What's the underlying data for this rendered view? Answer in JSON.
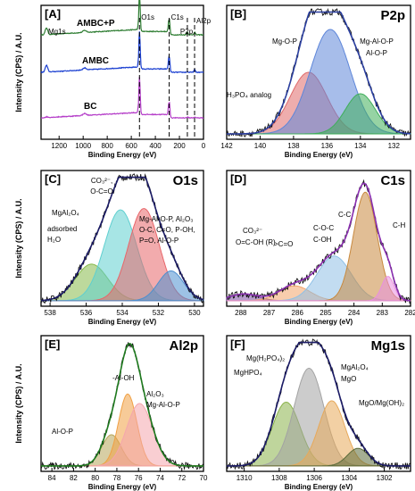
{
  "chart_data": [
    {
      "panel": "[A]",
      "type": "line",
      "title": "",
      "xlabel": "Binding Energy (eV)",
      "ylabel": "Intensity (CPS) / A.U.",
      "xlim": [
        1350,
        0
      ],
      "xticks": [
        1200,
        1000,
        800,
        600,
        400,
        200,
        0
      ],
      "series": [
        {
          "name": "AMBC+P",
          "color": "#2e7d32",
          "baseline": 0.78
        },
        {
          "name": "AMBC",
          "color": "#1a3fd1",
          "baseline": 0.5
        },
        {
          "name": "BC",
          "color": "#b43cc8",
          "baseline": 0.16
        }
      ],
      "peak_labels": [
        "Mg1s",
        "O1s",
        "C1s",
        "Al2p",
        "P2p"
      ],
      "peak_positions": [
        1305,
        532,
        285,
        74,
        134
      ]
    },
    {
      "panel": "[B]",
      "type": "area",
      "title": "P2p",
      "xlabel": "Binding Energy (eV)",
      "ylabel": "",
      "xlim": [
        142,
        131
      ],
      "xticks": [
        142,
        140,
        138,
        136,
        134,
        132
      ],
      "series": [
        {
          "name": "H₃PO₄ analog",
          "center": 137.1,
          "height": 0.46,
          "width": 1.1,
          "color": "#e06a6a"
        },
        {
          "name": "Mg-O-P",
          "center": 135.8,
          "height": 0.78,
          "width": 1.2,
          "color": "#5e86d9"
        },
        {
          "name": "Mg-Al-O-P / Al-O-P",
          "center": 134.0,
          "height": 0.3,
          "width": 0.9,
          "color": "#3fae5a"
        }
      ],
      "annotations": [
        "H₃PO₄ analog",
        "Mg-O-P",
        "Mg-Al-O-P",
        "Al-O-P"
      ]
    },
    {
      "panel": "[C]",
      "type": "area",
      "title": "O1s",
      "xlabel": "Binding Energy (eV)",
      "ylabel": "Intensity (CPS) / A.U.",
      "xlim": [
        538.5,
        529.5
      ],
      "xticks": [
        538,
        536,
        534,
        532,
        530
      ],
      "series": [
        {
          "name": "adsorbed H₂O",
          "center": 535.7,
          "height": 0.27,
          "width": 0.9,
          "color": "#86b94a"
        },
        {
          "name": "MgAl₂O₄",
          "center": 534.1,
          "height": 0.67,
          "width": 0.9,
          "color": "#5fcfd0"
        },
        {
          "name": "CO₃²⁻, O-C=O",
          "center": 532.8,
          "height": 0.68,
          "width": 0.85,
          "color": "#e8666a"
        },
        {
          "name": "Mg-Al-O-P, Al₂O₃, O-C, C=O, P-OH, P=O, Al-O-P",
          "center": 531.3,
          "height": 0.22,
          "width": 0.7,
          "color": "#4d8fcf"
        }
      ],
      "annotations": [
        "CO₃²⁻,",
        "O-C=O",
        "MgAl₂O₄",
        "adsorbed",
        "H₂O",
        "Mg-Al-O-P, Al₂O₃",
        "O-C, C=O, P-OH,",
        "P=O, Al-O-P"
      ]
    },
    {
      "panel": "[D]",
      "type": "area",
      "title": "C1s",
      "xlabel": "Binding Energy (eV)",
      "ylabel": "",
      "xlim": [
        288.5,
        282
      ],
      "xticks": [
        288,
        287,
        286,
        285,
        284,
        283,
        282
      ],
      "series": [
        {
          "name": "CO₃²⁻ O=C-OH (R)",
          "center": 287.9,
          "height": 0.05,
          "width": 0.5,
          "color": "#7a4aa0"
        },
        {
          "name": ">C=O",
          "center": 286.1,
          "height": 0.11,
          "width": 0.55,
          "color": "#f2a46a"
        },
        {
          "name": "C-O-C / C-OH",
          "center": 284.7,
          "height": 0.33,
          "width": 0.6,
          "color": "#8fc0e6"
        },
        {
          "name": "C-C",
          "center": 283.6,
          "height": 0.8,
          "width": 0.42,
          "color": "#c8893e"
        },
        {
          "name": "C-H",
          "center": 282.8,
          "height": 0.18,
          "width": 0.22,
          "color": "#e98fe0"
        }
      ],
      "annotations": [
        "CO₃²⁻",
        "O=C-OH (R)",
        ">C=O",
        "C-O-C",
        "C-OH",
        "C-C",
        "C-H"
      ]
    },
    {
      "panel": "[E]",
      "type": "area",
      "title": "Al2p",
      "xlabel": "Binding Energy (eV)",
      "ylabel": "Intensity (CPS) / A.U.",
      "xlim": [
        85,
        70
      ],
      "xticks": [
        84,
        82,
        80,
        78,
        76,
        74,
        72,
        70
      ],
      "series": [
        {
          "name": "Al-O-P",
          "center": 78.5,
          "height": 0.23,
          "width": 0.9,
          "color": "#b7a55a"
        },
        {
          "name": "-Al-OH",
          "center": 77.0,
          "height": 0.53,
          "width": 0.85,
          "color": "#f0a044"
        },
        {
          "name": "Al₂O₃ / Mg-Al-O-P",
          "center": 75.9,
          "height": 0.46,
          "width": 1.2,
          "color": "#f4a6ad"
        }
      ],
      "annotations": [
        "-Al-OH",
        "Al₂O₃",
        "Mg-Al-O-P",
        "Al-O-P"
      ]
    },
    {
      "panel": "[F]",
      "type": "area",
      "title": "Mg1s",
      "xlabel": "Binding Energy (eV)",
      "ylabel": "",
      "xlim": [
        1311,
        1300.5
      ],
      "xticks": [
        1310,
        1308,
        1306,
        1304,
        1302
      ],
      "series": [
        {
          "name": "MgHPO₄",
          "center": 1307.6,
          "height": 0.47,
          "width": 0.8,
          "color": "#8bb34a"
        },
        {
          "name": "Mg(H₂PO₄)₂",
          "center": 1306.3,
          "height": 0.72,
          "width": 0.85,
          "color": "#a3a3a3"
        },
        {
          "name": "MgAl₂O₄ / MgO",
          "center": 1305.0,
          "height": 0.48,
          "width": 0.75,
          "color": "#e7a95a"
        },
        {
          "name": "MgO/Mg(OH)₂",
          "center": 1303.5,
          "height": 0.13,
          "width": 0.6,
          "color": "#5b6b3a"
        }
      ],
      "annotations": [
        "Mg(H₂PO₄)₂",
        "MgHPO₄",
        "MgAl₂O₄",
        "MgO",
        "MgO/Mg(OH)₂"
      ]
    }
  ]
}
